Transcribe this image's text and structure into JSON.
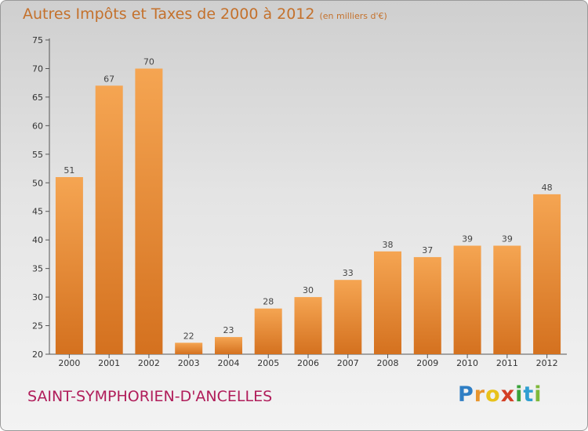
{
  "title": "Autres Impôts et Taxes de 2000 à 2012",
  "unit_note": "(en milliers d'€)",
  "commune": "SAINT-SYMPHORIEN-D'ANCELLES",
  "logo": {
    "letters": [
      "P",
      "r",
      "o",
      "x",
      "i",
      "t",
      "i"
    ],
    "colors": [
      "#2f7ec4",
      "#e8952e",
      "#e8c21b",
      "#d33f25",
      "#3aa33b",
      "#2f9ed1",
      "#7fb83a"
    ]
  },
  "colors": {
    "bar_top": "#f5a552",
    "bar_bottom": "#d4711f",
    "title": "#c4712c",
    "commune": "#b01d5a"
  },
  "chart_data": {
    "type": "bar",
    "categories": [
      "2000",
      "2001",
      "2002",
      "2003",
      "2004",
      "2005",
      "2006",
      "2007",
      "2008",
      "2009",
      "2010",
      "2011",
      "2012"
    ],
    "values": [
      51,
      67,
      70,
      22,
      23,
      28,
      30,
      33,
      38,
      37,
      39,
      39,
      48
    ],
    "ylim": [
      20,
      75
    ],
    "yticks": [
      20,
      25,
      30,
      35,
      40,
      45,
      50,
      55,
      60,
      65,
      70,
      75
    ],
    "grid": false,
    "legend": "none"
  }
}
